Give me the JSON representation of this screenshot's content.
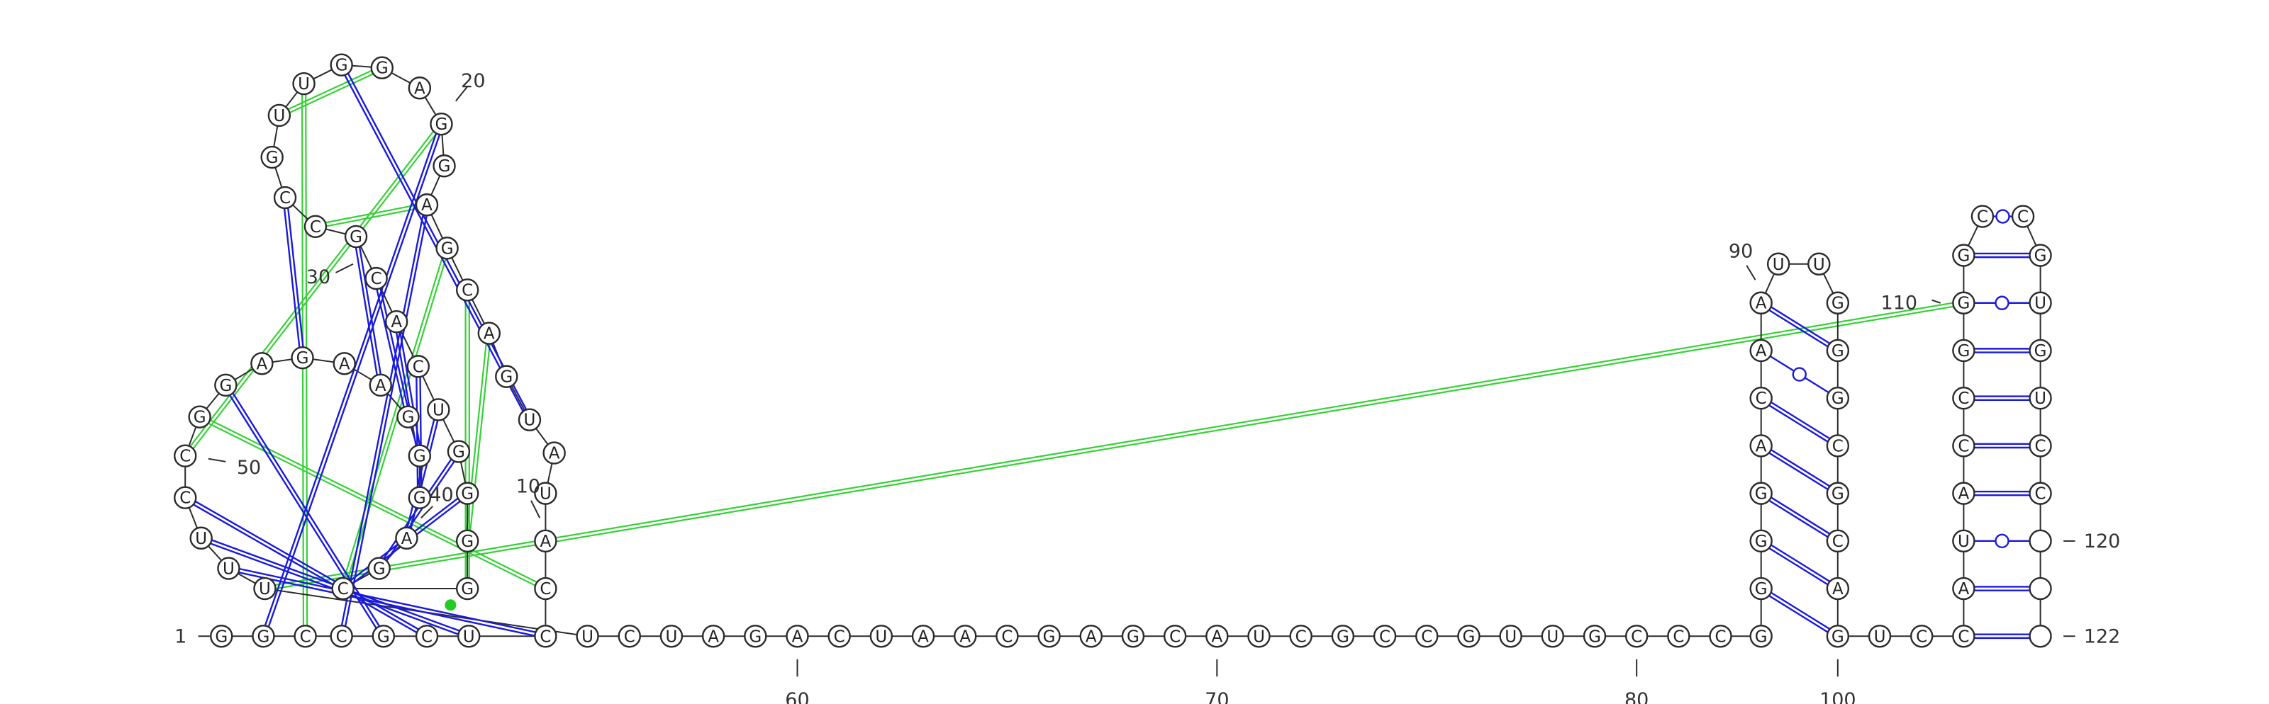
{
  "sequence": "GGCCGCUCCAUAUGACGAGGAGGUUGCCGCACUGGGGCGAGGGAAGAGGCCUUUUCUAGACUAACGAGCAUCGCCGUUGCCCGGGGACAAUUGGGCGCAGUCCAUACCGGGCCGUGUCC",
  "nucleotide_count": 122,
  "position_labels": [
    {
      "pos": 1,
      "text": "1"
    },
    {
      "pos": 10,
      "text": "10"
    },
    {
      "pos": 20,
      "text": "20"
    },
    {
      "pos": 30,
      "text": "30"
    },
    {
      "pos": 40,
      "text": "40"
    },
    {
      "pos": 50,
      "text": "50"
    },
    {
      "pos": 60,
      "text": "60"
    },
    {
      "pos": 70,
      "text": "70"
    },
    {
      "pos": 80,
      "text": "80"
    },
    {
      "pos": 90,
      "text": "90"
    },
    {
      "pos": 100,
      "text": "100"
    },
    {
      "pos": 110,
      "text": "110"
    },
    {
      "pos": 120,
      "text": "120"
    },
    {
      "pos": 122,
      "text": "122"
    }
  ],
  "canonical_pairs": [
    [
      2,
      20
    ],
    [
      4,
      18
    ],
    [
      5,
      48
    ],
    [
      6,
      51
    ],
    [
      7,
      52
    ],
    [
      8,
      53
    ],
    [
      13,
      23
    ],
    [
      27,
      46
    ],
    [
      29,
      44
    ],
    [
      30,
      43
    ],
    [
      31,
      42
    ],
    [
      32,
      41
    ],
    [
      33,
      40
    ],
    [
      34,
      39
    ],
    [
      35,
      38
    ],
    [
      84,
      100
    ],
    [
      85,
      99
    ],
    [
      86,
      98
    ],
    [
      87,
      97
    ],
    [
      88,
      96
    ],
    [
      90,
      94
    ],
    [
      103,
      122
    ],
    [
      104,
      121
    ],
    [
      106,
      119
    ],
    [
      107,
      118
    ],
    [
      108,
      117
    ],
    [
      109,
      116
    ],
    [
      111,
      114
    ]
  ],
  "wobble_pairs": [
    [
      89,
      95
    ],
    [
      105,
      120
    ],
    [
      110,
      115
    ],
    [
      113,
      112
    ]
  ],
  "pseudoknot_pairs": [
    [
      18,
      28
    ],
    [
      16,
      37
    ],
    [
      15,
      36
    ],
    [
      9,
      49
    ],
    [
      17,
      38
    ],
    [
      22,
      25
    ],
    [
      54,
      110
    ],
    [
      3,
      24
    ],
    [
      20,
      50
    ]
  ],
  "colors": {
    "backbone": "#2b2b2b",
    "canonical_pair": "#1a1add",
    "pseudoknot": "#36d136",
    "marker": "#22cc22"
  }
}
